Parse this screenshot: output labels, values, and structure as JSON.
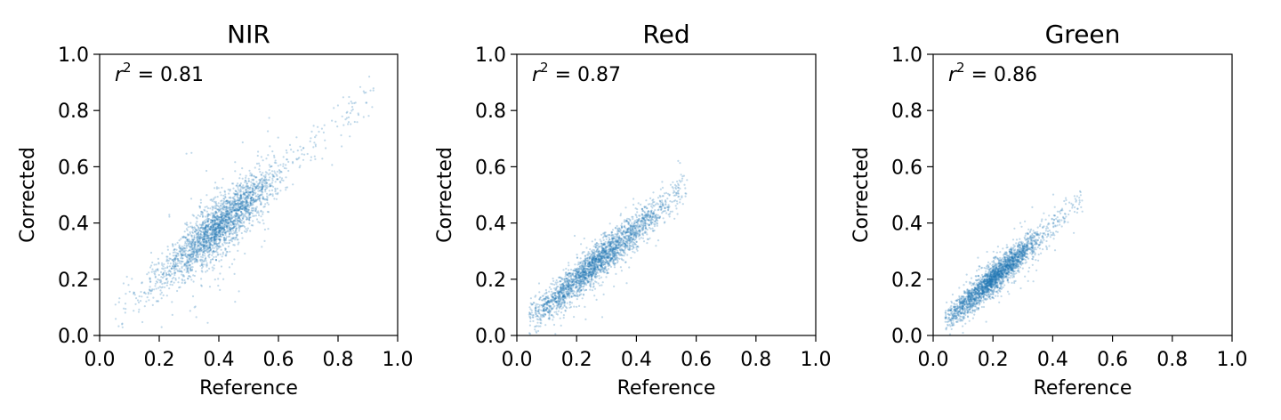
{
  "chart_data": [
    {
      "type": "scatter",
      "title": "NIR",
      "xlabel": "Reference",
      "ylabel": "Corrected",
      "annotation": {
        "r_label": "r",
        "exponent": "2",
        "text": " = 0.81"
      },
      "xlim": [
        0.0,
        1.0
      ],
      "ylim": [
        0.0,
        1.0
      ],
      "xticks": [
        "0.0",
        "0.2",
        "0.4",
        "0.6",
        "0.8",
        "1.0"
      ],
      "yticks": [
        "0.0",
        "0.2",
        "0.4",
        "0.6",
        "0.8",
        "1.0"
      ],
      "color": "#1f77b4",
      "grid": false,
      "distribution": {
        "x_core": [
          0.25,
          0.55
        ],
        "slope": 0.92,
        "intercept": 0.02,
        "spread": 0.045,
        "x_tail": [
          0.05,
          0.92
        ]
      }
    },
    {
      "type": "scatter",
      "title": "Red",
      "xlabel": "Reference",
      "ylabel": "Corrected",
      "annotation": {
        "r_label": "r",
        "exponent": "2",
        "text": " = 0.87"
      },
      "xlim": [
        0.0,
        1.0
      ],
      "ylim": [
        0.0,
        1.0
      ],
      "xticks": [
        "0.0",
        "0.2",
        "0.4",
        "0.6",
        "0.8",
        "1.0"
      ],
      "yticks": [
        "0.0",
        "0.2",
        "0.4",
        "0.6",
        "0.8",
        "1.0"
      ],
      "color": "#1f77b4",
      "grid": false,
      "distribution": {
        "x_core": [
          0.08,
          0.45
        ],
        "slope": 0.9,
        "intercept": 0.02,
        "spread": 0.03,
        "x_tail": [
          0.04,
          0.57
        ]
      }
    },
    {
      "type": "scatter",
      "title": "Green",
      "xlabel": "Reference",
      "ylabel": "Corrected",
      "annotation": {
        "r_label": "r",
        "exponent": "2",
        "text": " = 0.86"
      },
      "xlim": [
        0.0,
        1.0
      ],
      "ylim": [
        0.0,
        1.0
      ],
      "xticks": [
        "0.0",
        "0.2",
        "0.4",
        "0.6",
        "0.8",
        "1.0"
      ],
      "yticks": [
        "0.0",
        "0.2",
        "0.4",
        "0.6",
        "0.8",
        "1.0"
      ],
      "color": "#1f77b4",
      "grid": false,
      "distribution": {
        "x_core": [
          0.07,
          0.33
        ],
        "slope": 0.95,
        "intercept": 0.01,
        "spread": 0.025,
        "x_tail": [
          0.04,
          0.5
        ]
      }
    }
  ]
}
